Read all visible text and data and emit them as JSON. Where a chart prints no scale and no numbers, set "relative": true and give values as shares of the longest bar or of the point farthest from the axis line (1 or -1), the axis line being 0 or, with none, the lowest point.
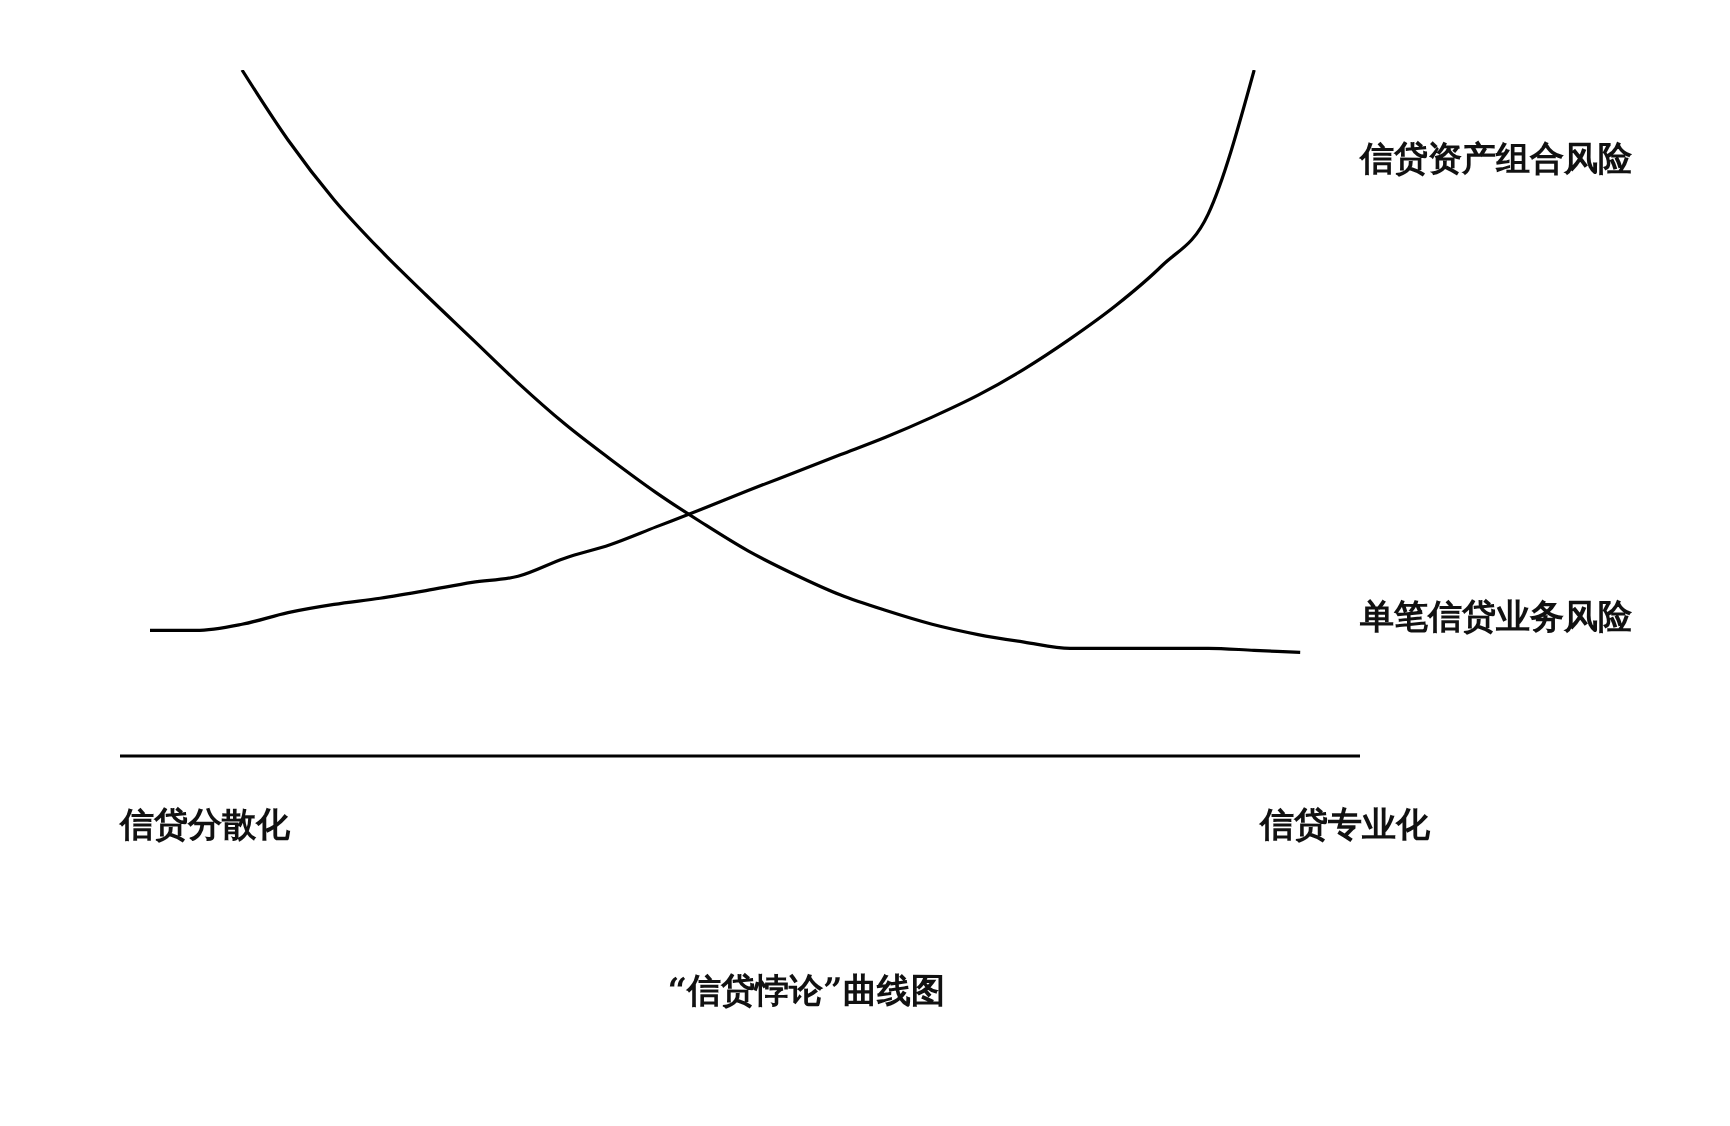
{
  "chart_data": {
    "type": "line",
    "title": "“信贷悖论”曲线图",
    "relative": true,
    "categories": [
      null,
      null,
      null,
      null,
      null,
      null,
      null,
      null,
      null,
      null,
      null,
      null,
      null,
      null,
      null,
      null,
      null,
      null,
      null,
      null,
      null,
      null,
      null,
      null,
      null,
      null
    ],
    "series": [
      {
        "name": "信贷资产组合风险",
        "color": "#000000",
        "values": [
          0.183,
          0.183,
          0.192,
          0.209,
          0.221,
          0.23,
          0.241,
          0.253,
          0.262,
          0.288,
          0.308,
          0.334,
          0.36,
          0.387,
          0.413,
          0.439,
          0.465,
          0.494,
          0.526,
          0.564,
          0.608,
          0.657,
          0.715,
          0.79,
          1,
          null
        ]
      },
      {
        "name": "单笔信贷业务风险",
        "color": "#000000",
        "values": [
          null,
          null,
          1,
          0.898,
          0.811,
          0.738,
          0.672,
          0.608,
          0.544,
          0.485,
          0.433,
          0.384,
          0.34,
          0.299,
          0.265,
          0.235,
          0.212,
          0.192,
          0.177,
          0.166,
          0.157,
          0.157,
          0.157,
          0.157,
          0.154,
          0.151
        ]
      }
    ],
    "annotations": [
      "信贷分散化",
      "信贷专业化"
    ]
  }
}
